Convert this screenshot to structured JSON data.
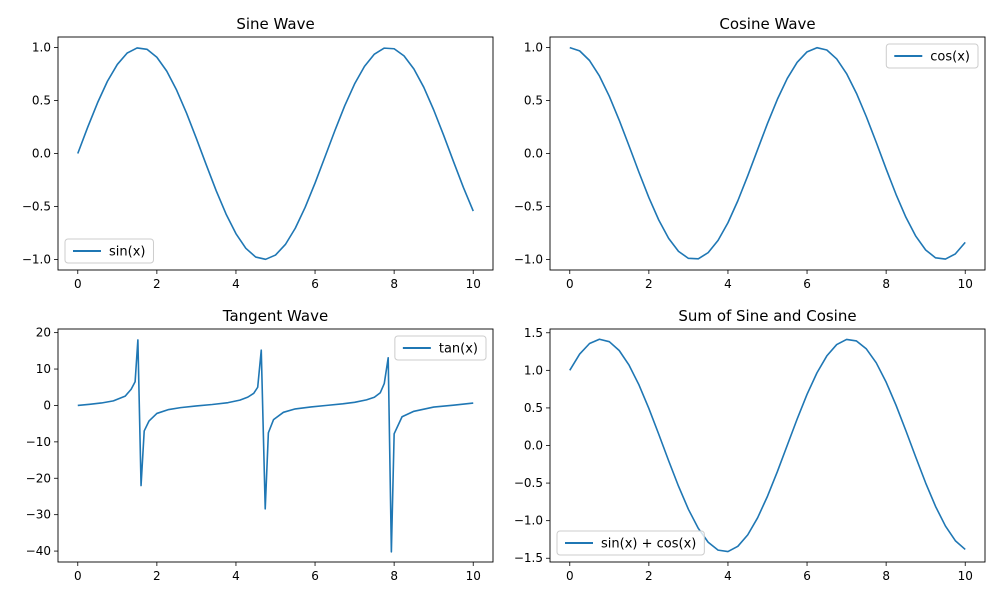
{
  "chart_data": [
    {
      "type": "line",
      "title": "Sine Wave",
      "xlabel": "",
      "ylabel": "",
      "xlim": [
        -0.5,
        10.5
      ],
      "ylim": [
        -1.1,
        1.1
      ],
      "x_ticks": [
        0,
        2,
        4,
        6,
        8,
        10
      ],
      "y_ticks": [
        -1.0,
        -0.5,
        0.0,
        0.5,
        1.0
      ],
      "x_tick_labels": [
        "0",
        "2",
        "4",
        "6",
        "8",
        "10"
      ],
      "y_tick_labels": [
        "−1.0",
        "−0.5",
        "0.0",
        "0.5",
        "1.0"
      ],
      "grid": false,
      "legend_position": "lower-left",
      "series": [
        {
          "name": "sin(x)",
          "color": "#1f77b4",
          "x": [
            0,
            0.25,
            0.5,
            0.75,
            1.0,
            1.25,
            1.5,
            1.75,
            2.0,
            2.25,
            2.5,
            2.75,
            3.0,
            3.25,
            3.5,
            3.75,
            4.0,
            4.25,
            4.5,
            4.75,
            5.0,
            5.25,
            5.5,
            5.75,
            6.0,
            6.25,
            6.5,
            6.75,
            7.0,
            7.25,
            7.5,
            7.75,
            8.0,
            8.25,
            8.5,
            8.75,
            9.0,
            9.25,
            9.5,
            9.75,
            10.0
          ],
          "y": [
            0.0,
            0.247,
            0.479,
            0.682,
            0.841,
            0.949,
            0.997,
            0.984,
            0.909,
            0.778,
            0.598,
            0.382,
            0.141,
            -0.108,
            -0.351,
            -0.572,
            -0.757,
            -0.895,
            -0.978,
            -0.999,
            -0.959,
            -0.859,
            -0.706,
            -0.508,
            -0.279,
            -0.033,
            0.215,
            0.45,
            0.657,
            0.823,
            0.938,
            0.995,
            0.989,
            0.922,
            0.798,
            0.625,
            0.412,
            0.174,
            -0.075,
            -0.319,
            -0.544
          ]
        }
      ]
    },
    {
      "type": "line",
      "title": "Cosine Wave",
      "xlabel": "",
      "ylabel": "",
      "xlim": [
        -0.5,
        10.5
      ],
      "ylim": [
        -1.1,
        1.1
      ],
      "x_ticks": [
        0,
        2,
        4,
        6,
        8,
        10
      ],
      "y_ticks": [
        -1.0,
        -0.5,
        0.0,
        0.5,
        1.0
      ],
      "x_tick_labels": [
        "0",
        "2",
        "4",
        "6",
        "8",
        "10"
      ],
      "y_tick_labels": [
        "−1.0",
        "−0.5",
        "0.0",
        "0.5",
        "1.0"
      ],
      "grid": false,
      "legend_position": "upper-right",
      "series": [
        {
          "name": "cos(x)",
          "color": "#1f77b4",
          "x": [
            0,
            0.25,
            0.5,
            0.75,
            1.0,
            1.25,
            1.5,
            1.75,
            2.0,
            2.25,
            2.5,
            2.75,
            3.0,
            3.25,
            3.5,
            3.75,
            4.0,
            4.25,
            4.5,
            4.75,
            5.0,
            5.25,
            5.5,
            5.75,
            6.0,
            6.25,
            6.5,
            6.75,
            7.0,
            7.25,
            7.5,
            7.75,
            8.0,
            8.25,
            8.5,
            8.75,
            9.0,
            9.25,
            9.5,
            9.75,
            10.0
          ],
          "y": [
            1.0,
            0.969,
            0.878,
            0.732,
            0.54,
            0.315,
            0.071,
            -0.178,
            -0.416,
            -0.628,
            -0.801,
            -0.924,
            -0.99,
            -0.994,
            -0.936,
            -0.82,
            -0.654,
            -0.446,
            -0.211,
            0.037,
            0.284,
            0.512,
            0.709,
            0.861,
            0.96,
            0.999,
            0.977,
            0.893,
            0.754,
            0.568,
            0.347,
            0.105,
            -0.146,
            -0.386,
            -0.602,
            -0.781,
            -0.911,
            -0.985,
            -0.997,
            -0.948,
            -0.839
          ]
        }
      ]
    },
    {
      "type": "line",
      "title": "Tangent Wave",
      "xlabel": "",
      "ylabel": "",
      "xlim": [
        -0.5,
        10.5
      ],
      "ylim": [
        -43.0,
        21.0
      ],
      "x_ticks": [
        0,
        2,
        4,
        6,
        8,
        10
      ],
      "y_ticks": [
        -40,
        -30,
        -20,
        -10,
        0,
        10,
        20
      ],
      "x_tick_labels": [
        "0",
        "2",
        "4",
        "6",
        "8",
        "10"
      ],
      "y_tick_labels": [
        "−40",
        "−30",
        "−20",
        "−10",
        "0",
        "10",
        "20"
      ],
      "grid": false,
      "legend_position": "upper-right",
      "series": [
        {
          "name": "tan(x)",
          "color": "#1f77b4",
          "x": [
            0,
            0.3,
            0.6,
            0.9,
            1.2,
            1.35,
            1.45,
            1.52,
            1.6,
            1.68,
            1.8,
            2.0,
            2.3,
            2.6,
            3.0,
            3.4,
            3.8,
            4.1,
            4.3,
            4.45,
            4.55,
            4.64,
            4.74,
            4.82,
            4.95,
            5.2,
            5.5,
            5.9,
            6.3,
            6.7,
            7.0,
            7.3,
            7.5,
            7.65,
            7.75,
            7.85,
            7.93,
            8.0,
            8.2,
            8.5,
            9.0,
            9.5,
            10.0
          ],
          "y": [
            0.0,
            0.31,
            0.68,
            1.26,
            2.57,
            4.46,
            6.5,
            18.0,
            -22.0,
            -7.0,
            -4.3,
            -2.19,
            -1.12,
            -0.6,
            -0.14,
            0.26,
            0.77,
            1.47,
            2.29,
            3.33,
            5.0,
            15.2,
            -28.4,
            -7.5,
            -3.9,
            -1.88,
            -0.95,
            -0.42,
            0.02,
            0.44,
            0.87,
            1.54,
            2.25,
            3.5,
            6.0,
            13.1,
            -40.2,
            -7.8,
            -3.1,
            -1.6,
            -0.45,
            0.08,
            0.65
          ]
        }
      ]
    },
    {
      "type": "line",
      "title": "Sum of Sine and Cosine",
      "xlabel": "",
      "ylabel": "",
      "xlim": [
        -0.5,
        10.5
      ],
      "ylim": [
        -1.55,
        1.55
      ],
      "x_ticks": [
        0,
        2,
        4,
        6,
        8,
        10
      ],
      "y_ticks": [
        -1.5,
        -1.0,
        -0.5,
        0.0,
        0.5,
        1.0,
        1.5
      ],
      "x_tick_labels": [
        "0",
        "2",
        "4",
        "6",
        "8",
        "10"
      ],
      "y_tick_labels": [
        "−1.5",
        "−1.0",
        "−0.5",
        "0.0",
        "0.5",
        "1.0",
        "1.5"
      ],
      "grid": false,
      "legend_position": "lower-left",
      "series": [
        {
          "name": "sin(x) + cos(x)",
          "color": "#1f77b4",
          "x": [
            0,
            0.25,
            0.5,
            0.75,
            1.0,
            1.25,
            1.5,
            1.75,
            2.0,
            2.25,
            2.5,
            2.75,
            3.0,
            3.25,
            3.5,
            3.75,
            4.0,
            4.25,
            4.5,
            4.75,
            5.0,
            5.25,
            5.5,
            5.75,
            6.0,
            6.25,
            6.5,
            6.75,
            7.0,
            7.25,
            7.5,
            7.75,
            8.0,
            8.25,
            8.5,
            8.75,
            9.0,
            9.25,
            9.5,
            9.75,
            10.0
          ],
          "y": [
            1.0,
            1.216,
            1.357,
            1.414,
            1.381,
            1.264,
            1.068,
            0.806,
            0.493,
            0.15,
            -0.203,
            -0.542,
            -0.849,
            -1.102,
            -1.287,
            -1.392,
            -1.411,
            -1.341,
            -1.189,
            -0.962,
            -0.675,
            -0.347,
            0.003,
            0.353,
            0.681,
            0.966,
            1.192,
            1.343,
            1.411,
            1.391,
            1.285,
            1.1,
            0.843,
            0.536,
            0.196,
            -0.156,
            -0.499,
            -0.811,
            -1.072,
            -1.267,
            -1.383
          ]
        }
      ]
    }
  ]
}
